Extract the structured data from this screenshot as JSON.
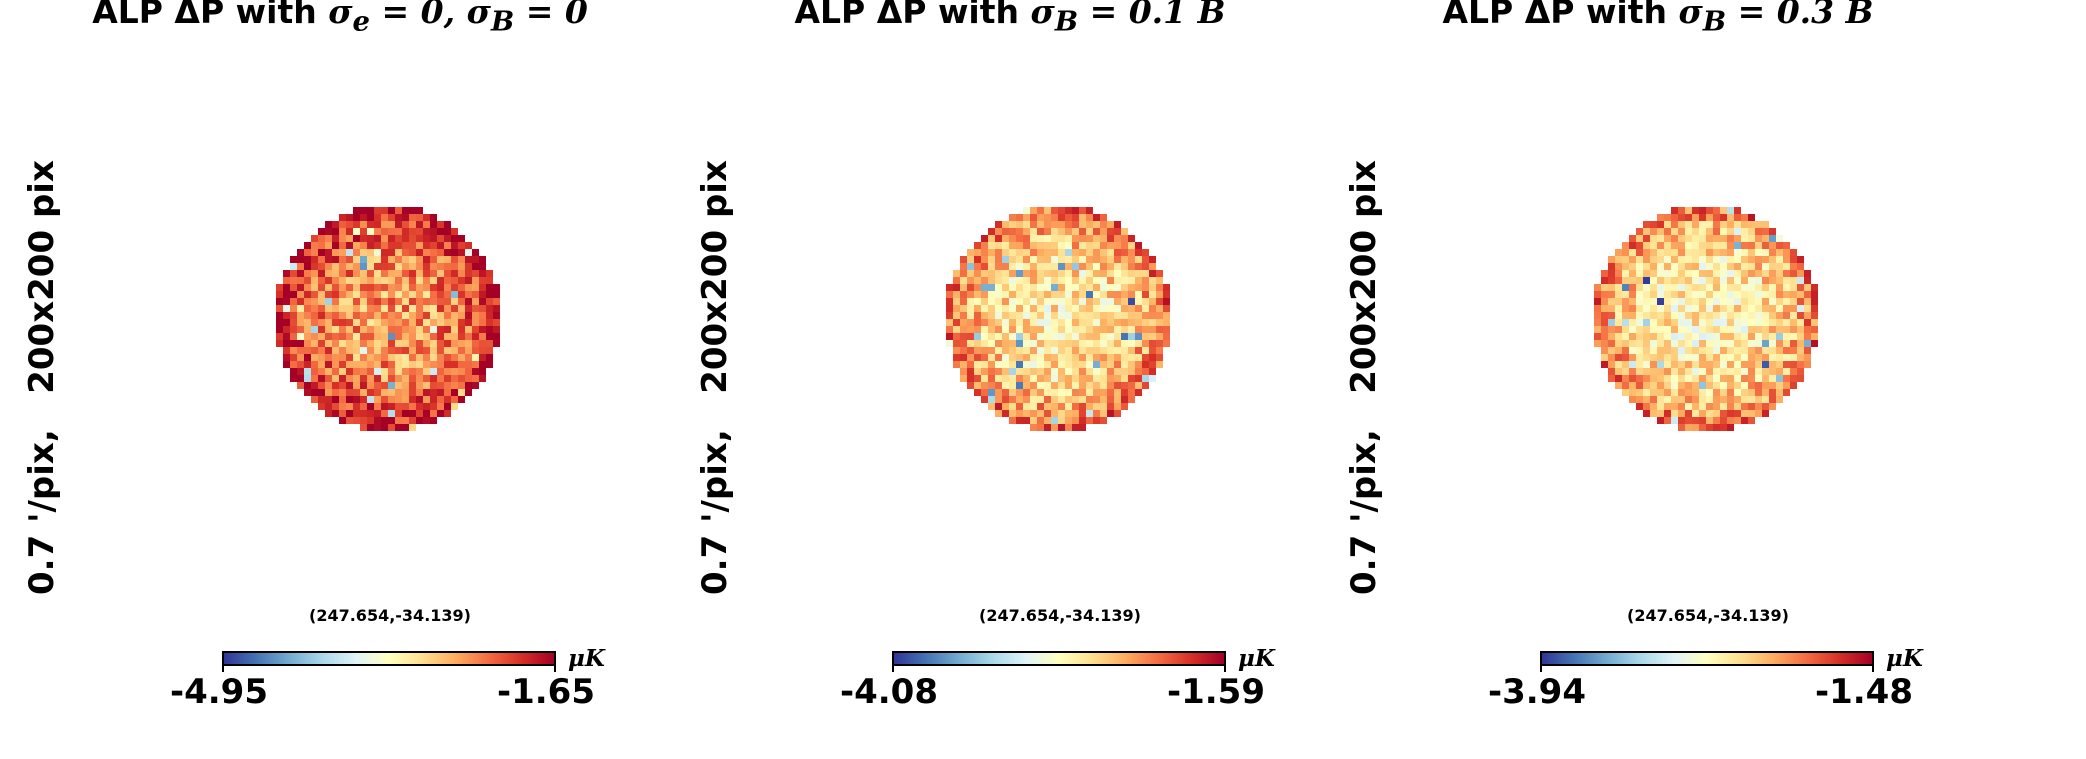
{
  "panels": [
    {
      "title_prefix": "ALP ΔP with ",
      "title_math": "σ",
      "title_sub": "e",
      "title_rest": " = 0, ",
      "title_math2": "σ",
      "title_sub2": "B",
      "title_rest2": " = 0",
      "side_label": "0.7 '/pix,   200x200 pix",
      "coord": "(247.654,-34.139)",
      "unit": "μK",
      "vmin": "-4.95",
      "vmax": "-1.65",
      "mean_level": 0.72
    },
    {
      "title_prefix": "ALP ΔP with ",
      "title_math": "σ",
      "title_sub": "B",
      "title_rest": " = 0.1 B",
      "side_label": "0.7 '/pix,   200x200 pix",
      "coord": "(247.654,-34.139)",
      "unit": "μK",
      "vmin": "-4.08",
      "vmax": "-1.59",
      "mean_level": 0.56
    },
    {
      "title_prefix": "ALP ΔP with ",
      "title_math": "σ",
      "title_sub": "B",
      "title_rest": " = 0.3 B",
      "side_label": "0.7 '/pix,   200x200 pix",
      "coord": "(247.654,-34.139)",
      "unit": "μK",
      "vmin": "-3.94",
      "vmax": "-1.48",
      "mean_level": 0.54
    }
  ],
  "colormap": [
    "#313695",
    "#4575b4",
    "#74add1",
    "#abd9e9",
    "#e0f3f8",
    "#ffffbf",
    "#fee090",
    "#fdae61",
    "#f46d43",
    "#d73027",
    "#a50026"
  ]
}
